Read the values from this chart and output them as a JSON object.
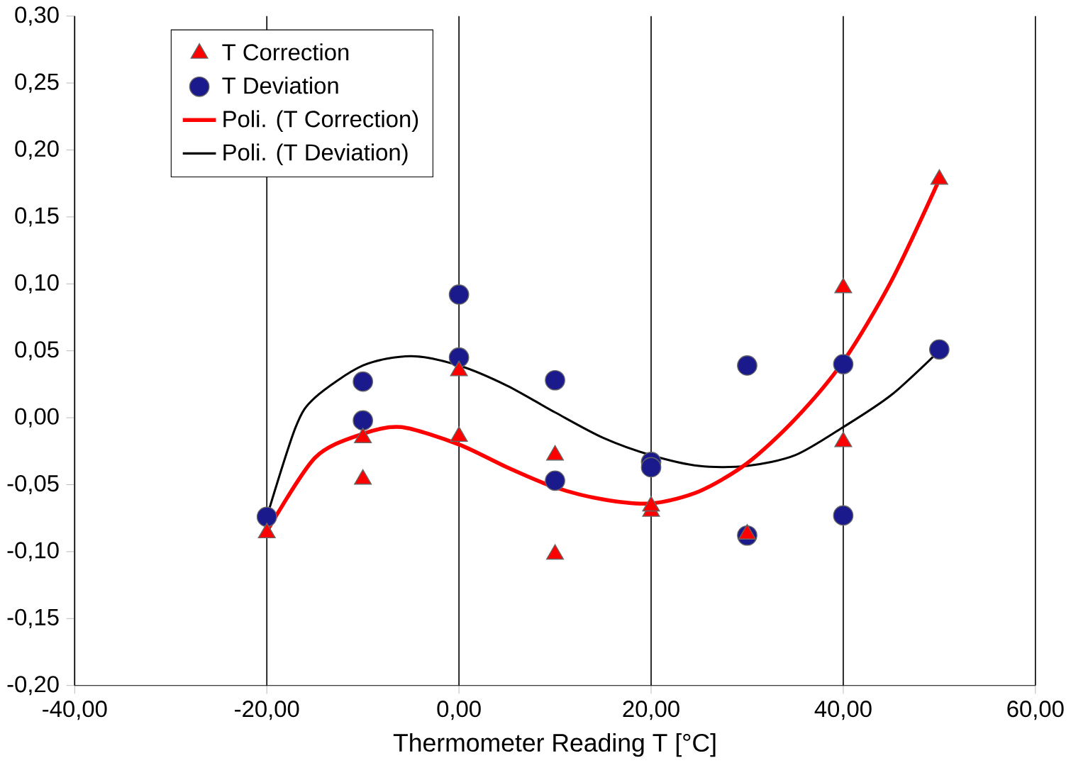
{
  "chart_data": {
    "type": "scatter",
    "xlabel": "Thermometer Reading T [°C]",
    "xlim": [
      -40,
      60
    ],
    "ylim": [
      -0.2,
      0.3
    ],
    "xticks": [
      {
        "value": -40,
        "label": "-40,00"
      },
      {
        "value": -20,
        "label": "-20,00"
      },
      {
        "value": 0,
        "label": "0,00"
      },
      {
        "value": 20,
        "label": "20,00"
      },
      {
        "value": 40,
        "label": "40,00"
      },
      {
        "value": 60,
        "label": "60,00"
      }
    ],
    "yticks": [
      {
        "value": -0.2,
        "label": "-0,20"
      },
      {
        "value": -0.15,
        "label": "-0,15"
      },
      {
        "value": -0.1,
        "label": "-0,10"
      },
      {
        "value": -0.05,
        "label": "-0,05"
      },
      {
        "value": 0,
        "label": "0,00"
      },
      {
        "value": 0.05,
        "label": "0,05"
      },
      {
        "value": 0.1,
        "label": "0,10"
      },
      {
        "value": 0.15,
        "label": "0,15"
      },
      {
        "value": 0.2,
        "label": "0,20"
      },
      {
        "value": 0.25,
        "label": "0,25"
      },
      {
        "value": 0.3,
        "label": "0,30"
      }
    ],
    "grid": "x",
    "legend": "top left",
    "series": [
      {
        "name": "T Correction",
        "marker": "triangle",
        "color": "#ff0000",
        "x": [
          -20,
          -10,
          -10,
          0,
          0,
          10,
          10,
          20,
          20,
          30,
          40,
          40,
          50
        ],
        "values": [
          -0.086,
          -0.015,
          -0.046,
          -0.014,
          0.035,
          -0.028,
          -0.102,
          -0.07,
          -0.066,
          -0.087,
          0.097,
          -0.018,
          0.178
        ]
      },
      {
        "name": "T Deviation",
        "marker": "circle",
        "color": "#1a1a8c",
        "x": [
          -20,
          -10,
          -10,
          0,
          0,
          10,
          10,
          20,
          20,
          30,
          30,
          40,
          40,
          50
        ],
        "values": [
          -0.074,
          0.027,
          -0.002,
          0.092,
          0.045,
          0.028,
          -0.047,
          -0.033,
          -0.037,
          0.039,
          -0.088,
          0.04,
          -0.073,
          0.051
        ]
      },
      {
        "name": "Poli. (T Correction)",
        "type": "line",
        "marker": "none",
        "line_style": "solid",
        "color": "#ff0000",
        "x": [
          -20,
          -15,
          -10,
          -6,
          0,
          5,
          10,
          15,
          20,
          25,
          30,
          35,
          40,
          45,
          50
        ],
        "values": [
          -0.085,
          -0.03,
          -0.012,
          -0.007,
          -0.02,
          -0.037,
          -0.052,
          -0.061,
          -0.064,
          -0.055,
          -0.034,
          -0.001,
          0.042,
          0.102,
          0.178
        ]
      },
      {
        "name": "Poli. (T Deviation)",
        "type": "line",
        "marker": "none",
        "line_style": "solid",
        "color": "#000000",
        "x": [
          -20,
          -17,
          -15,
          -10,
          -5,
          0,
          5,
          10,
          15,
          20,
          25,
          30,
          35,
          40,
          45,
          50
        ],
        "values": [
          -0.074,
          -0.007,
          0.015,
          0.039,
          0.046,
          0.039,
          0.024,
          0.004,
          -0.015,
          -0.028,
          -0.036,
          -0.036,
          -0.028,
          -0.007,
          0.017,
          0.05
        ]
      }
    ]
  }
}
